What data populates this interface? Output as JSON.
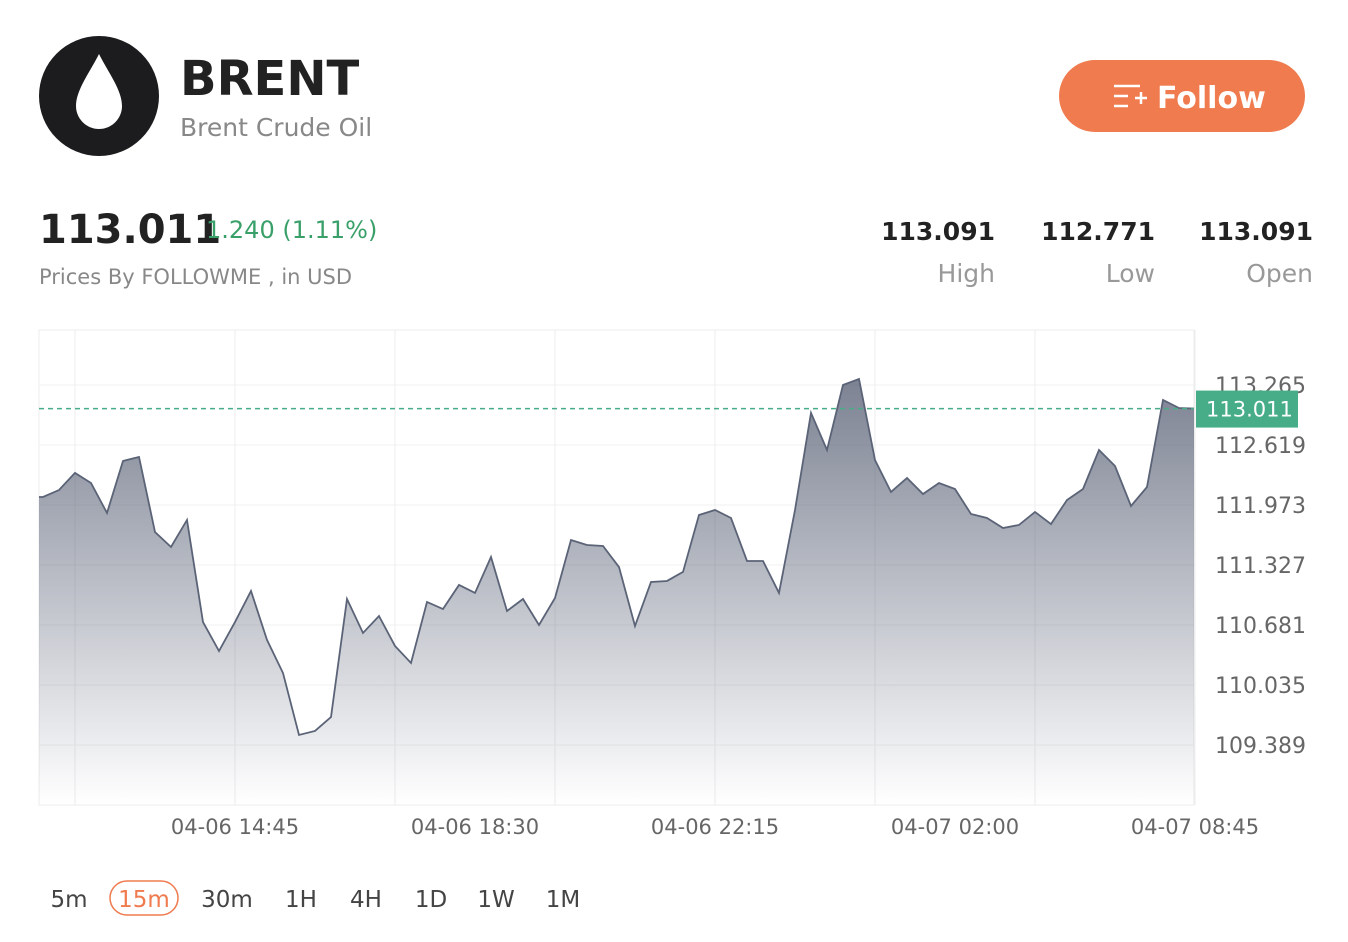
{
  "header": {
    "title": "BRENT",
    "subtitle": "Brent Crude Oil",
    "button": "Follow"
  },
  "quote": {
    "price": "113.011",
    "change": "1.240 (1.11%)",
    "note": "Prices By FOLLOWME , in USD"
  },
  "stats": [
    {
      "value": "113.091",
      "label": "High"
    },
    {
      "value": "112.771",
      "label": "Low"
    },
    {
      "value": "113.091",
      "label": "Open"
    }
  ],
  "chart_data": {
    "type": "area",
    "color": "#5b6377",
    "grid": true,
    "current_line": 113.011,
    "current_color": "#46ad88",
    "categories": [
      null,
      null,
      null,
      null,
      null,
      null,
      null,
      null,
      null,
      null,
      null,
      null,
      "04-06 14:45",
      null,
      null,
      null,
      null,
      null,
      null,
      null,
      null,
      null,
      null,
      null,
      null,
      null,
      null,
      "04-06 18:30",
      null,
      null,
      null,
      null,
      null,
      null,
      null,
      null,
      null,
      null,
      null,
      null,
      null,
      null,
      "04-06 22:15",
      null,
      null,
      null,
      null,
      null,
      null,
      null,
      null,
      null,
      null,
      null,
      null,
      null,
      null,
      "04-07 02:00",
      null,
      null,
      null,
      null,
      null,
      null,
      null,
      null,
      null,
      null,
      null,
      null,
      null,
      null,
      "04-07 08:45"
    ],
    "values": [
      112.059,
      112.134,
      112.318,
      112.21,
      111.887,
      112.447,
      112.49,
      111.682,
      111.521,
      111.812,
      110.713,
      110.401,
      110.713,
      111.047,
      110.52,
      110.164,
      109.497,
      109.54,
      109.69,
      110.961,
      110.595,
      110.778,
      110.455,
      110.272,
      110.929,
      110.853,
      111.112,
      111.026,
      111.413,
      110.832,
      110.961,
      110.681,
      110.972,
      111.596,
      111.542,
      111.532,
      111.305,
      110.67,
      111.144,
      111.155,
      111.252,
      111.865,
      111.919,
      111.833,
      111.37,
      111.37,
      111.026,
      111.919,
      112.964,
      112.565,
      113.265,
      113.33,
      112.457,
      112.113,
      112.264,
      112.091,
      112.21,
      112.145,
      111.876,
      111.833,
      111.725,
      111.758,
      111.898,
      111.768,
      112.027,
      112.145,
      112.565,
      112.393,
      111.962,
      112.167,
      113.104,
      113.017,
      113.011
    ],
    "ylim": [
      108.743,
      113.857
    ],
    "yticks": [
      113.265,
      112.619,
      111.973,
      111.327,
      110.681,
      110.035,
      109.389
    ]
  },
  "intervals": [
    "5m",
    "15m",
    "30m",
    "1H",
    "4H",
    "1D",
    "1W",
    "1M"
  ],
  "selected_interval": 1
}
